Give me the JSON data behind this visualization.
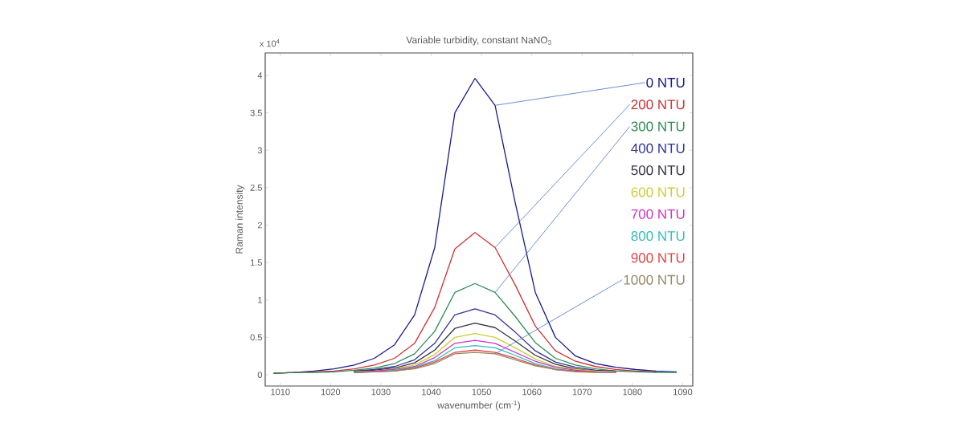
{
  "chart_data": {
    "type": "line",
    "title": "Variable turbidity, constant NaNO$_{3}$",
    "xlabel": "wavenumber (cm$^{-1}$)",
    "ylabel": "Raman intensity",
    "annotations": [
      "x 10$^{4}$"
    ],
    "x": [
      1008.7,
      1012.7,
      1016.7,
      1020.7,
      1024.7,
      1028.7,
      1032.7,
      1036.7,
      1040.7,
      1044.7,
      1048.7,
      1052.7,
      1056.7,
      1060.7,
      1064.7,
      1068.7,
      1072.7,
      1076.7,
      1080.7,
      1084.7,
      1088.7
    ],
    "xlim": [
      1007,
      1092
    ],
    "xticks": [
      1010,
      1020,
      1030,
      1040,
      1050,
      1060,
      1070,
      1080,
      1090
    ],
    "ylim": [
      -0.15,
      4.3
    ],
    "yticks": [
      0,
      0.5,
      1,
      1.5,
      2,
      2.5,
      3,
      3.5,
      4
    ],
    "line_style": "solid",
    "marker": "none",
    "grid": false,
    "legend": false,
    "series": [
      {
        "name": "0 NTU",
        "color": "#1a1a8c",
        "values": [
          0.02,
          0.03,
          0.05,
          0.08,
          0.13,
          0.22,
          0.4,
          0.8,
          1.7,
          3.5,
          3.96,
          3.6,
          2.3,
          1.1,
          0.5,
          0.25,
          0.15,
          0.1,
          0.07,
          0.05,
          0.04
        ]
      },
      {
        "name": "200 NTU",
        "color": "#cc3333",
        "values": [
          0.02,
          0.03,
          0.04,
          0.05,
          0.08,
          0.13,
          0.22,
          0.42,
          0.9,
          1.68,
          1.9,
          1.7,
          1.2,
          0.65,
          0.32,
          0.18,
          0.11,
          0.07,
          0.05,
          0.04,
          null
        ]
      },
      {
        "name": "300 NTU",
        "color": "#2e8b57",
        "values": [
          0.02,
          0.03,
          0.03,
          0.04,
          0.06,
          0.09,
          0.15,
          0.28,
          0.58,
          1.1,
          1.22,
          1.1,
          0.78,
          0.43,
          0.22,
          0.13,
          0.08,
          0.05,
          0.04,
          0.03,
          0.03
        ]
      },
      {
        "name": "400 NTU",
        "color": "#333399",
        "values": [
          null,
          null,
          null,
          null,
          0.05,
          0.07,
          0.11,
          0.2,
          0.42,
          0.8,
          0.88,
          0.8,
          0.57,
          0.32,
          0.17,
          0.1,
          0.06,
          0.05,
          null,
          null,
          null
        ]
      },
      {
        "name": "500 NTU",
        "color": "#333344",
        "values": [
          null,
          null,
          null,
          null,
          0.04,
          0.06,
          0.09,
          0.16,
          0.33,
          0.62,
          0.69,
          0.63,
          0.45,
          0.26,
          0.14,
          0.08,
          0.05,
          0.04,
          null,
          null,
          null
        ]
      },
      {
        "name": "600 NTU",
        "color": "#cccc33",
        "values": [
          null,
          null,
          null,
          null,
          0.04,
          0.05,
          0.08,
          0.13,
          0.27,
          0.5,
          0.55,
          0.5,
          0.36,
          0.21,
          0.11,
          0.07,
          0.05,
          0.04,
          null,
          null,
          null
        ]
      },
      {
        "name": "700 NTU",
        "color": "#cc33cc",
        "values": [
          null,
          null,
          null,
          null,
          0.03,
          0.05,
          0.07,
          0.11,
          0.23,
          0.42,
          0.46,
          0.42,
          0.3,
          0.18,
          0.1,
          0.06,
          0.04,
          0.03,
          null,
          null,
          null
        ]
      },
      {
        "name": "800 NTU",
        "color": "#33bbbb",
        "values": [
          null,
          null,
          null,
          null,
          0.03,
          0.04,
          0.06,
          0.1,
          0.19,
          0.36,
          0.39,
          0.36,
          0.26,
          0.15,
          0.08,
          0.05,
          null,
          null,
          null,
          null,
          null
        ]
      },
      {
        "name": "900 NTU",
        "color": "#dd4444",
        "values": [
          null,
          null,
          null,
          null,
          0.03,
          0.04,
          0.05,
          0.09,
          0.17,
          0.3,
          0.33,
          0.3,
          0.22,
          0.13,
          0.07,
          0.05,
          0.04,
          null,
          null,
          null,
          null
        ]
      },
      {
        "name": "1000 NTU",
        "color": "#998866",
        "values": [
          null,
          null,
          null,
          null,
          0.03,
          0.04,
          0.05,
          0.08,
          0.15,
          0.28,
          0.3,
          0.28,
          0.2,
          0.12,
          0.07,
          0.04,
          0.03,
          0.03,
          null,
          null,
          null
        ]
      }
    ]
  }
}
